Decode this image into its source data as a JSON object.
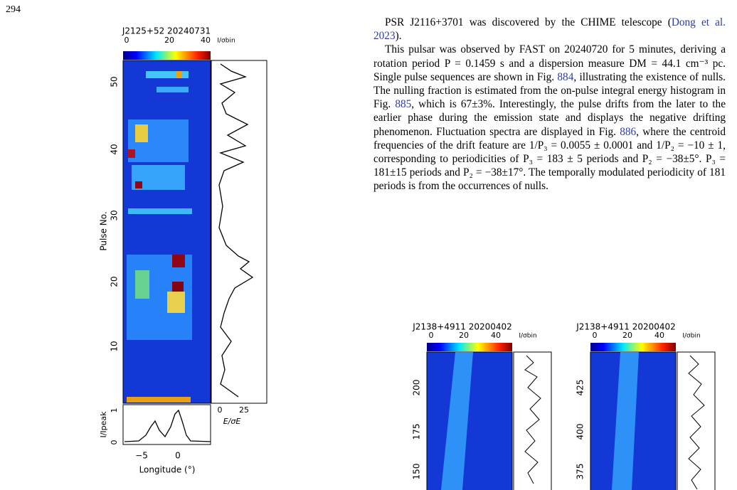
{
  "page_number": "294",
  "figure_main": {
    "title": "J2125+52  20240731",
    "colorbar_ticks": [
      "0",
      "20",
      "40"
    ],
    "colorbar_label": "I/σbin",
    "y_label": "Pulse No.",
    "y_ticks": [
      "10",
      "20",
      "30",
      "40",
      "50"
    ],
    "energy_ticks": [
      "0",
      "25"
    ],
    "energy_label": "E/σE",
    "profile_y_label": "I/Ipeak",
    "profile_y_ticks": [
      "0",
      "1"
    ],
    "x_ticks": [
      "−5",
      "0"
    ],
    "x_label": "Longitude (°)"
  },
  "text": {
    "paragraphs": [
      [
        "PSR J2116+3701 was discovered by the CHIME telescope (",
        "Dong et al. 2023",
        "). "
      ],
      [
        "This pulsar was observed by FAST on 20240720 for 5 minutes, deriving a rotation period P = 0.1459 s and a dispersion measure DM = 44.1 cm⁻³ pc. Single pulse sequences are shown in Fig. ",
        "884",
        ", illustrating the existence of nulls. The nulling fraction is estimated from the on-pulse integral energy histogram in Fig. ",
        "885",
        ", which is 67±3%. Interestingly, the pulse drifts from the later to the earlier phase during the emission state and displays the negative drifting phenomenon. Fluctuation spectra are displayed in Fig. ",
        "886",
        ", where the centroid frequencies of the drift feature are 1/P₃ = 0.0055 ± 0.0001 and 1/P₂ = −10 ± 1, corresponding to periodicities of P₃ = 183 ± 5 periods and P₂ = −38±5°. P₃ = 181±15 periods and P₂ = −38±17°. The temporally modulated periodicity of 181 periods is from the occurrences of nulls."
      ]
    ]
  },
  "figures_bottom": [
    {
      "title": "J2138+4911  20200402",
      "colorbar_ticks": [
        "0",
        "20",
        "40"
      ],
      "colorbar_label": "I/σbin",
      "y_ticks": [
        "200",
        "175",
        "150"
      ]
    },
    {
      "title": "J2138+4911  20200402",
      "colorbar_ticks": [
        "0",
        "20",
        "40"
      ],
      "colorbar_label": "I/σbin",
      "y_ticks": [
        "425",
        "400",
        "375"
      ]
    }
  ]
}
